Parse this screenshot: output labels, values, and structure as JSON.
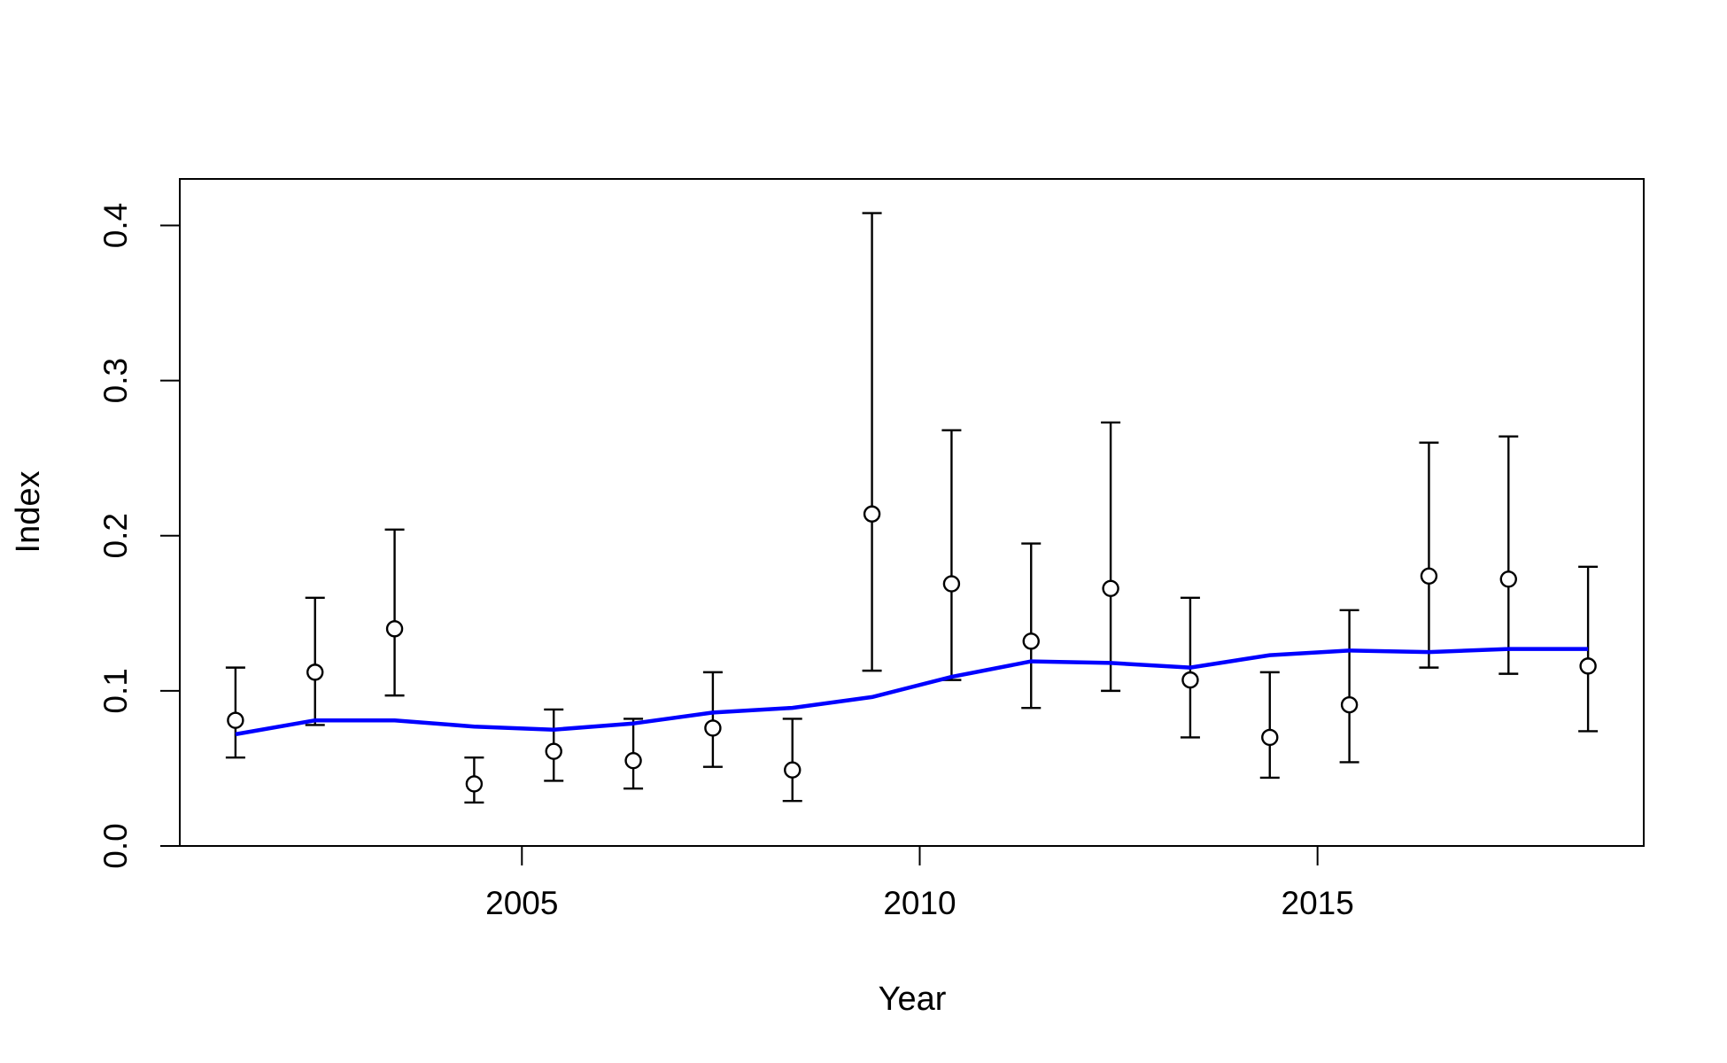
{
  "chart_data": {
    "type": "scatter",
    "title": "",
    "xlabel": "Year",
    "ylabel": "Index",
    "xlim": [
      2000.7,
      2019.1
    ],
    "ylim": [
      0.0,
      0.43
    ],
    "x_ticks": [
      2005,
      2010,
      2015
    ],
    "x_tick_labels": [
      "2005",
      "2010",
      "2015"
    ],
    "y_ticks": [
      0.0,
      0.1,
      0.2,
      0.3,
      0.4
    ],
    "y_tick_labels": [
      "0.0",
      "0.1",
      "0.2",
      "0.3",
      "0.4"
    ],
    "grid": false,
    "legend": "none",
    "series": [
      {
        "style": "points-with-error-bars",
        "marker": "open-circle",
        "color": "#000000",
        "x": [
          2001.4,
          2002.4,
          2003.4,
          2004.4,
          2005.4,
          2006.4,
          2007.4,
          2008.4,
          2009.4,
          2010.4,
          2011.4,
          2012.4,
          2013.4,
          2014.4,
          2015.4,
          2016.4,
          2017.4,
          2018.4
        ],
        "y": [
          0.081,
          0.112,
          0.14,
          0.04,
          0.061,
          0.055,
          0.076,
          0.049,
          0.214,
          0.169,
          0.132,
          0.166,
          0.107,
          0.07,
          0.091,
          0.174,
          0.172,
          0.116
        ],
        "lower": [
          0.057,
          0.078,
          0.097,
          0.028,
          0.042,
          0.037,
          0.051,
          0.029,
          0.113,
          0.107,
          0.089,
          0.1,
          0.07,
          0.044,
          0.054,
          0.115,
          0.111,
          0.074
        ],
        "upper": [
          0.115,
          0.16,
          0.204,
          0.057,
          0.088,
          0.082,
          0.112,
          0.082,
          0.408,
          0.268,
          0.195,
          0.273,
          0.16,
          0.112,
          0.152,
          0.26,
          0.264,
          0.18
        ]
      },
      {
        "style": "line",
        "color": "#0000ff",
        "x": [
          2001.4,
          2002.4,
          2003.4,
          2004.4,
          2005.4,
          2006.4,
          2007.4,
          2008.4,
          2009.4,
          2010.4,
          2011.4,
          2012.4,
          2013.4,
          2014.4,
          2015.4,
          2016.4,
          2017.4,
          2018.4
        ],
        "y": [
          0.072,
          0.081,
          0.081,
          0.077,
          0.075,
          0.079,
          0.086,
          0.089,
          0.096,
          0.109,
          0.119,
          0.118,
          0.115,
          0.123,
          0.126,
          0.125,
          0.127,
          0.127
        ]
      }
    ]
  }
}
